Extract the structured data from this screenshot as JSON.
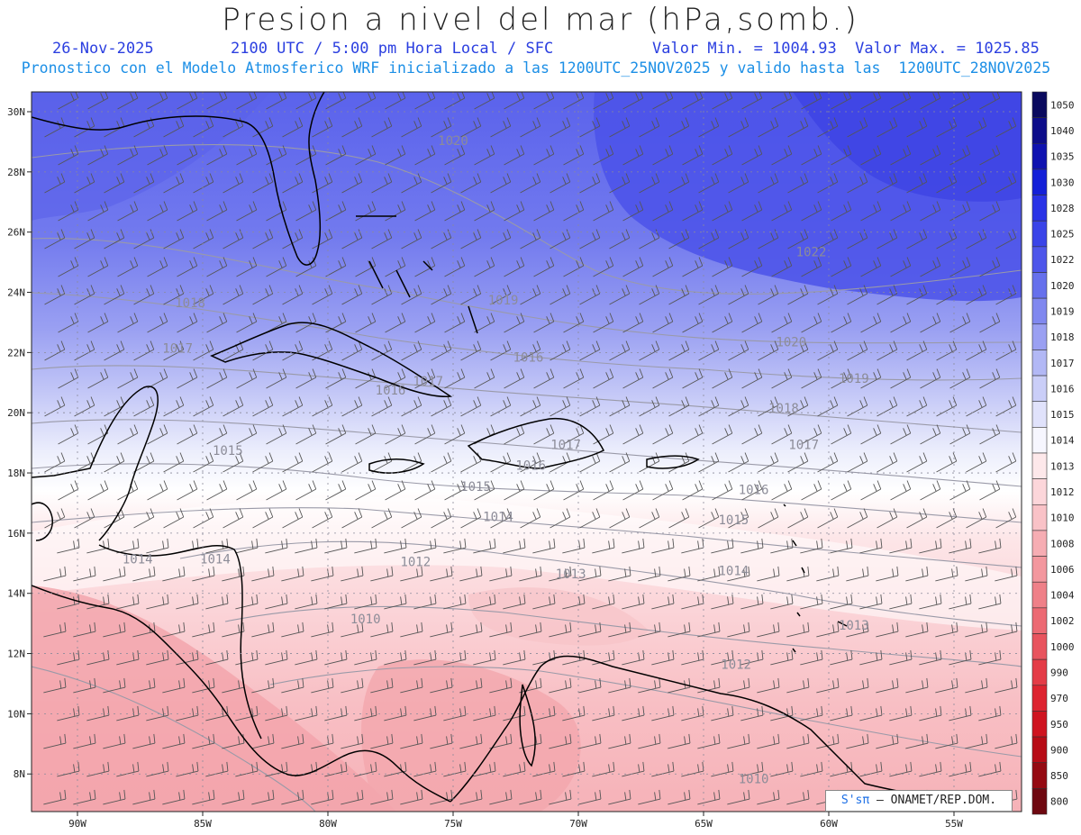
{
  "header": {
    "title": "Presion a nivel del mar (hPa,somb.)",
    "date": "26-Nov-2025",
    "time": "2100 UTC / 5:00 pm Hora Local / SFC",
    "minmax": "Valor Min. = 1004.93  Valor Max. = 1025.85",
    "forecast_note": "Pronostico con el Modelo Atmosferico WRF inicializado a las 1200UTC_25NOV2025 y valido hasta las  1200UTC_28NOV2025"
  },
  "axes": {
    "lat_labels": [
      "30N",
      "28N",
      "26N",
      "24N",
      "22N",
      "20N",
      "18N",
      "16N",
      "14N",
      "12N",
      "10N",
      "8N"
    ],
    "lon_labels": [
      "90W",
      "85W",
      "80W",
      "75W",
      "70W",
      "65W",
      "60W",
      "55W"
    ]
  },
  "colorbar": {
    "levels": [
      "1050",
      "1040",
      "1035",
      "1030",
      "1028",
      "1025",
      "1022",
      "1020",
      "1019",
      "1018",
      "1017",
      "1016",
      "1015",
      "1014",
      "1013",
      "1012",
      "1010",
      "1008",
      "1006",
      "1004",
      "1002",
      "1000",
      "990",
      "970",
      "950",
      "900",
      "850",
      "800"
    ],
    "colors": [
      "#0a0a5e",
      "#0d0d8a",
      "#0f12b0",
      "#1420d8",
      "#2a33e6",
      "#3a44e8",
      "#4e56ea",
      "#6670ec",
      "#8088ef",
      "#9aa0f2",
      "#b2b8f5",
      "#cacef8",
      "#e0e2fb",
      "#f6f6fe",
      "#fde8ea",
      "#fcd6da",
      "#f9c2c7",
      "#f6adb3",
      "#f3979e",
      "#ef8088",
      "#ec6a73",
      "#e8545e",
      "#e43c47",
      "#dd2430",
      "#cf1420",
      "#b70c16",
      "#950a12",
      "#6e0810"
    ]
  },
  "isobar_labels": [
    {
      "text": "1020",
      "lon": -75.0,
      "lat": 28.9
    },
    {
      "text": "1022",
      "lon": -60.7,
      "lat": 25.2
    },
    {
      "text": "1018",
      "lon": -85.5,
      "lat": 23.5
    },
    {
      "text": "1019",
      "lon": -73.0,
      "lat": 23.6
    },
    {
      "text": "1020",
      "lon": -61.5,
      "lat": 22.2
    },
    {
      "text": "1019",
      "lon": -59.0,
      "lat": 21.0
    },
    {
      "text": "1017",
      "lon": -86.0,
      "lat": 22.0
    },
    {
      "text": "1016",
      "lon": -72.0,
      "lat": 21.7
    },
    {
      "text": "1016",
      "lon": -77.5,
      "lat": 20.6
    },
    {
      "text": "1017",
      "lon": -76.0,
      "lat": 20.9
    },
    {
      "text": "1018",
      "lon": -61.8,
      "lat": 20.0
    },
    {
      "text": "1017",
      "lon": -61.0,
      "lat": 18.8
    },
    {
      "text": "1017",
      "lon": -70.5,
      "lat": 18.8
    },
    {
      "text": "1016",
      "lon": -71.9,
      "lat": 18.1
    },
    {
      "text": "1015",
      "lon": -84.0,
      "lat": 18.6
    },
    {
      "text": "1015",
      "lon": -74.1,
      "lat": 17.4
    },
    {
      "text": "1016",
      "lon": -63.0,
      "lat": 17.3
    },
    {
      "text": "1014",
      "lon": -73.2,
      "lat": 16.4
    },
    {
      "text": "1015",
      "lon": -63.8,
      "lat": 16.3
    },
    {
      "text": "1014",
      "lon": -87.6,
      "lat": 15.0
    },
    {
      "text": "1014",
      "lon": -84.5,
      "lat": 15.0
    },
    {
      "text": "1012",
      "lon": -76.5,
      "lat": 14.9
    },
    {
      "text": "1013",
      "lon": -70.3,
      "lat": 14.5
    },
    {
      "text": "1014",
      "lon": -63.8,
      "lat": 14.6
    },
    {
      "text": "1010",
      "lon": -78.5,
      "lat": 13.0
    },
    {
      "text": "1013",
      "lon": -59.0,
      "lat": 12.8
    },
    {
      "text": "1012",
      "lon": -63.7,
      "lat": 11.5
    },
    {
      "text": "1010",
      "lon": -63.0,
      "lat": 7.7
    }
  ],
  "credit": {
    "symbol": "S'sπ",
    "text": "– ONAMET/REP.DOM."
  }
}
